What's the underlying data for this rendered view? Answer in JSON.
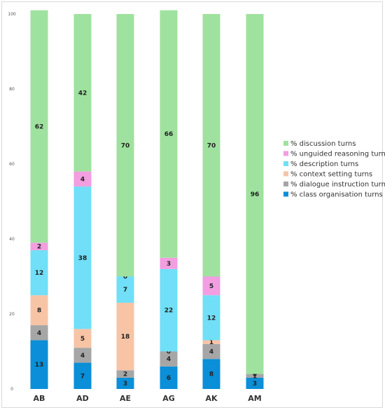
{
  "chart_data": {
    "type": "bar",
    "stacked": true,
    "categories": [
      "AB",
      "AD",
      "AE",
      "AG",
      "AK",
      "AM"
    ],
    "ylim": [
      0,
      100
    ],
    "yticks": [
      0,
      20,
      40,
      60,
      80,
      100
    ],
    "grid": false,
    "legend_position": "right",
    "series": [
      {
        "name": "% class organisation turns",
        "color": "#0a8fd8",
        "values": [
          13,
          7,
          3,
          6,
          8,
          3
        ]
      },
      {
        "name": "% dialogue instruction turns",
        "color": "#a6a6a6",
        "values": [
          4,
          4,
          2,
          4,
          4,
          1
        ]
      },
      {
        "name": "% context setting turns",
        "color": "#f8c4a6",
        "values": [
          8,
          5,
          18,
          0,
          1,
          0
        ]
      },
      {
        "name": "% description turns",
        "color": "#70dff7",
        "values": [
          12,
          38,
          7,
          22,
          12,
          0
        ]
      },
      {
        "name": "% unguided reasoning turns",
        "color": "#f29ee0",
        "values": [
          2,
          4,
          0,
          3,
          5,
          0
        ]
      },
      {
        "name": "% discussion turns",
        "color": "#9fe29f",
        "values": [
          62,
          42,
          70,
          66,
          70,
          96
        ]
      }
    ]
  }
}
